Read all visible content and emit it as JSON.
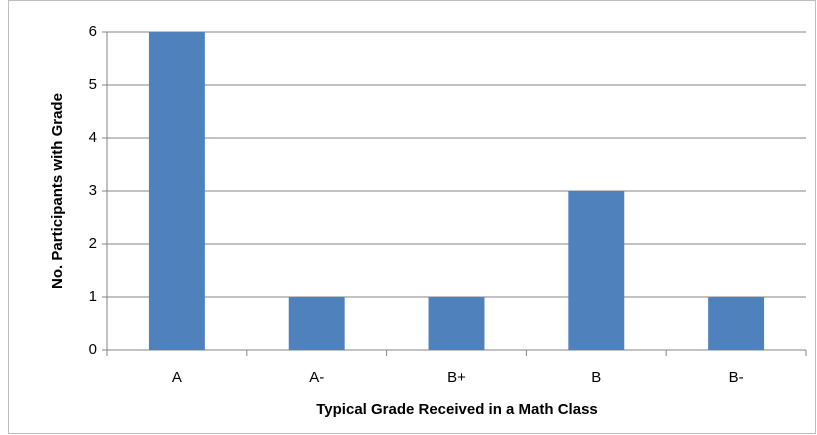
{
  "chart_data": {
    "type": "bar",
    "x_label": "Typical Grade Received in a Math Class",
    "y_label": "No. Participants with Grade",
    "categories": [
      "A",
      "A-",
      "B+",
      "B",
      "B-"
    ],
    "values": [
      6,
      1,
      1,
      3,
      1
    ],
    "color": "#4f81bd",
    "ylim": [
      0,
      6
    ],
    "yticks": [
      0,
      1,
      2,
      3,
      4,
      5,
      6
    ],
    "grid": true
  }
}
